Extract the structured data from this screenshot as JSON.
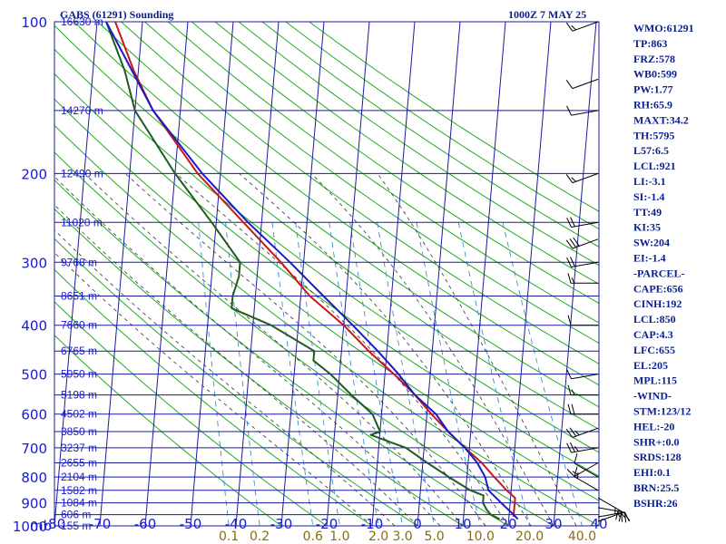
{
  "header": {
    "station": "GABS (61291) Sounding",
    "time": "1000Z  7 MAY 25"
  },
  "chart_data": {
    "type": "line",
    "title": "GABS (61291) Sounding",
    "subtitle": "1000Z  7 MAY 25",
    "pressure_levels": [
      100,
      200,
      300,
      400,
      500,
      600,
      700,
      800,
      900,
      1000
    ],
    "pressure_unit": "mb",
    "temperature_ticks": [
      -80,
      -70,
      -60,
      -50,
      -40,
      -30,
      -20,
      -10,
      0,
      10,
      20,
      30,
      40
    ],
    "height_labels": [
      {
        "p": 100,
        "label": "16630 m"
      },
      {
        "p": 150,
        "label": "14270 m"
      },
      {
        "p": 200,
        "label": "12490 m"
      },
      {
        "p": 250,
        "label": "11020 m"
      },
      {
        "p": 300,
        "label": "9768 m"
      },
      {
        "p": 350,
        "label": "8651 m"
      },
      {
        "p": 400,
        "label": "7660 m"
      },
      {
        "p": 450,
        "label": "6765 m"
      },
      {
        "p": 500,
        "label": "5950 m"
      },
      {
        "p": 550,
        "label": "5198 m"
      },
      {
        "p": 600,
        "label": "4502 m"
      },
      {
        "p": 650,
        "label": "3850 m"
      },
      {
        "p": 700,
        "label": "3237 m"
      },
      {
        "p": 750,
        "label": "2655 m"
      },
      {
        "p": 800,
        "label": "2104 m"
      },
      {
        "p": 850,
        "label": "1582 m"
      },
      {
        "p": 900,
        "label": "1084 m"
      },
      {
        "p": 950,
        "label": "606 m"
      },
      {
        "p": 1000,
        "label": "155 m"
      }
    ],
    "mixing_ratio_labels": [
      "0.1",
      "0.2",
      "0.6",
      "1.0",
      "2.0",
      "3.0",
      "5.0",
      "10.0",
      "20.0",
      "40.0"
    ],
    "mixing_ratio_values": [
      0.1,
      0.2,
      0.6,
      1.0,
      2.0,
      3.0,
      5.0,
      10.0,
      20.0,
      40.0
    ],
    "mixing_ratio_unit": "g/kg",
    "series": [
      {
        "key": "temperature",
        "color": "#c81818",
        "points": [
          [
            100,
            -76
          ],
          [
            125,
            -71
          ],
          [
            150,
            -66
          ],
          [
            200,
            -55
          ],
          [
            250,
            -44
          ],
          [
            300,
            -35
          ],
          [
            350,
            -28
          ],
          [
            400,
            -20
          ],
          [
            450,
            -14
          ],
          [
            500,
            -8
          ],
          [
            550,
            -3
          ],
          [
            600,
            1
          ],
          [
            650,
            5
          ],
          [
            700,
            9
          ],
          [
            750,
            13
          ],
          [
            800,
            16
          ],
          [
            850,
            19
          ],
          [
            880,
            21
          ],
          [
            900,
            21
          ],
          [
            950,
            21
          ],
          [
            960,
            21
          ]
        ]
      },
      {
        "key": "dewpoint",
        "color": "#1f5a1f",
        "points": [
          [
            100,
            -78
          ],
          [
            125,
            -73
          ],
          [
            150,
            -70
          ],
          [
            200,
            -60
          ],
          [
            250,
            -51
          ],
          [
            300,
            -44
          ],
          [
            320,
            -44
          ],
          [
            350,
            -45
          ],
          [
            370,
            -45
          ],
          [
            400,
            -36
          ],
          [
            450,
            -26
          ],
          [
            470,
            -26
          ],
          [
            500,
            -22
          ],
          [
            550,
            -17
          ],
          [
            600,
            -12
          ],
          [
            650,
            -10
          ],
          [
            660,
            -12
          ],
          [
            700,
            -4
          ],
          [
            750,
            1
          ],
          [
            800,
            6
          ],
          [
            850,
            11
          ],
          [
            870,
            14
          ],
          [
            900,
            14
          ],
          [
            930,
            15
          ],
          [
            950,
            16
          ],
          [
            970,
            18
          ]
        ]
      },
      {
        "key": "parcel",
        "color": "#1a1acc",
        "points": [
          [
            100,
            -78
          ],
          [
            150,
            -66
          ],
          [
            200,
            -54
          ],
          [
            250,
            -43
          ],
          [
            300,
            -33
          ],
          [
            350,
            -25
          ],
          [
            400,
            -18
          ],
          [
            450,
            -12
          ],
          [
            500,
            -7
          ],
          [
            550,
            -3
          ],
          [
            600,
            2
          ],
          [
            650,
            5
          ],
          [
            700,
            9
          ],
          [
            750,
            12
          ],
          [
            800,
            14
          ],
          [
            850,
            15
          ],
          [
            900,
            18
          ],
          [
            950,
            21
          ],
          [
            970,
            22
          ]
        ]
      }
    ],
    "wind_barbs": [
      {
        "p": 100,
        "dir": 250,
        "spd": 15
      },
      {
        "p": 130,
        "dir": 250,
        "spd": 10
      },
      {
        "p": 150,
        "dir": 260,
        "spd": 10
      },
      {
        "p": 200,
        "dir": 250,
        "spd": 15
      },
      {
        "p": 250,
        "dir": 260,
        "spd": 20
      },
      {
        "p": 270,
        "dir": 250,
        "spd": 30
      },
      {
        "p": 300,
        "dir": 260,
        "spd": 20
      },
      {
        "p": 330,
        "dir": 270,
        "spd": 15
      },
      {
        "p": 400,
        "dir": 270,
        "spd": 10
      },
      {
        "p": 500,
        "dir": 260,
        "spd": 10
      },
      {
        "p": 550,
        "dir": 270,
        "spd": 15
      },
      {
        "p": 600,
        "dir": 270,
        "spd": 20
      },
      {
        "p": 640,
        "dir": 250,
        "spd": 25
      },
      {
        "p": 700,
        "dir": 260,
        "spd": 25
      },
      {
        "p": 750,
        "dir": 240,
        "spd": 15
      },
      {
        "p": 800,
        "dir": 300,
        "spd": 10
      },
      {
        "p": 850,
        "dir": 300,
        "spd": 15
      },
      {
        "p": 880,
        "dir": 120,
        "spd": 25
      },
      {
        "p": 920,
        "dir": 100,
        "spd": 25
      },
      {
        "p": 960,
        "dir": 80,
        "spd": 15
      },
      {
        "p": 980,
        "dir": 70,
        "spd": 10
      }
    ],
    "xlim": [
      -80,
      40
    ],
    "ylim": [
      100,
      1000
    ],
    "skew_per_decade": 47
  },
  "indices": [
    "WMO:61291",
    "TP:863",
    "FRZ:578",
    "WB0:599",
    "PW:1.77",
    "RH:65.9",
    "MAXT:34.2",
    "TH:5795",
    "L57:6.5",
    "LCL:921",
    "LI:-3.1",
    "SI:-1.4",
    "TT:49",
    "KI:35",
    "SW:204",
    "EI:-1.4",
    "-PARCEL-",
    "CAPE:656",
    "CINH:192",
    "LCL:850",
    "CAP:4.3",
    "LFC:655",
    "EL:205",
    "MPL:115",
    "-WIND-",
    "STM:123/12",
    "HEL:-20",
    "SHR+:0.0",
    "SRDS:128",
    "EHI:0.1",
    "BRN:25.5",
    "BSHR:26"
  ],
  "colors": {
    "grid": "#1a1aa0",
    "dry_adiabat": "#22aa22",
    "moist_adiabat": "#333333",
    "mixing_ratio": "#3a8fd0",
    "text": "#1a1ad0",
    "mixing_label": "#8a6a14"
  }
}
